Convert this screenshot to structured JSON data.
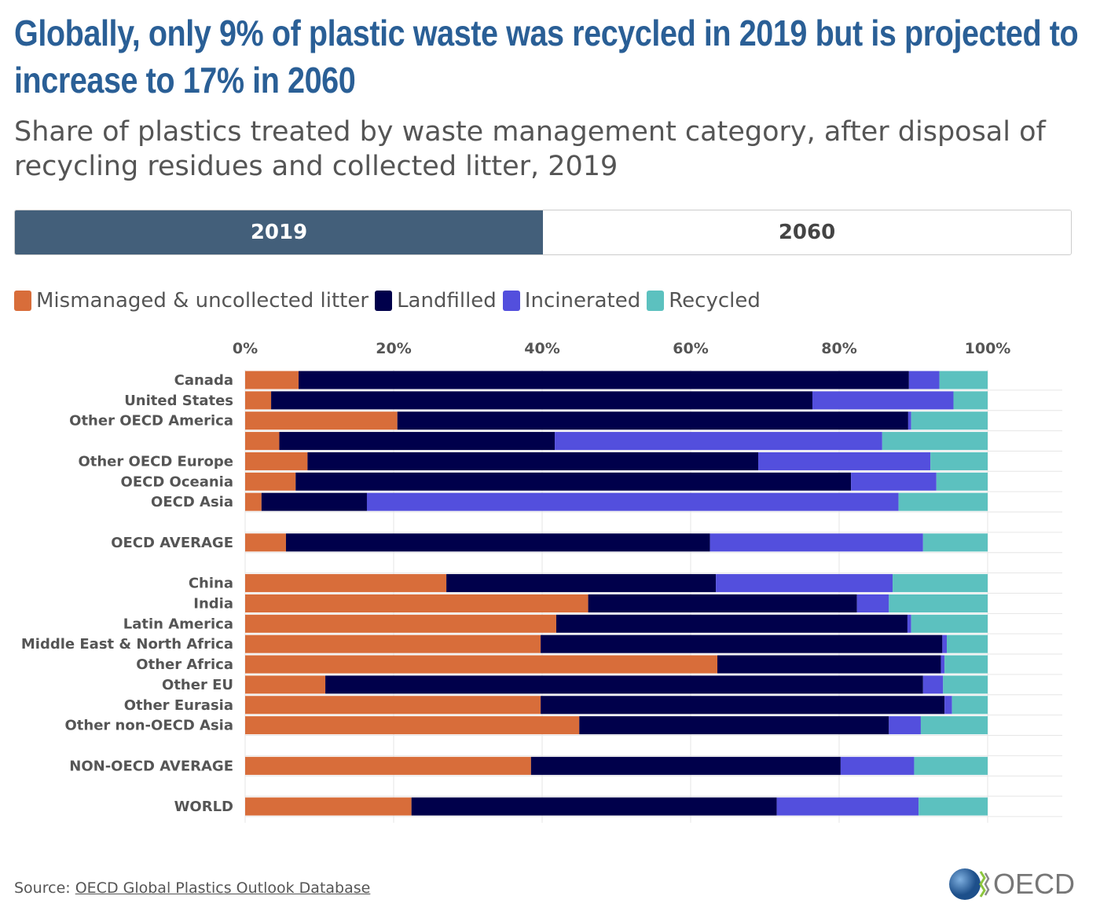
{
  "title": "Globally, only 9% of plastic waste was recycled in 2019 but is projected to increase to 17% in 2060",
  "subtitle": "Share of plastics treated by waste management category, after disposal of recycling residues and collected litter, 2019",
  "tabs": [
    {
      "label": "2019",
      "active": true
    },
    {
      "label": "2060",
      "active": false
    }
  ],
  "source": {
    "label": "Source:",
    "link": "OECD Global Plastics Outlook Database"
  },
  "logo": {
    "text": "OECD"
  },
  "chart_data": {
    "type": "bar",
    "orientation": "horizontal",
    "stacked": true,
    "xlim": [
      0,
      100
    ],
    "x_ticks": [
      "0%",
      "20%",
      "40%",
      "60%",
      "80%",
      "100%"
    ],
    "colors": [
      "#d86d3a",
      "#00004b",
      "#534fdd",
      "#5cc1bf"
    ],
    "series_names": [
      "Mismanaged & uncollected litter",
      "Landfilled",
      "Incinerated",
      "Recycled"
    ],
    "rows": [
      {
        "label": "Canada",
        "values": [
          7.2,
          82.2,
          4.1,
          6.5
        ]
      },
      {
        "label": "United States",
        "values": [
          3.5,
          72.9,
          19.0,
          4.6
        ]
      },
      {
        "label": "Other OECD America",
        "values": [
          20.5,
          68.8,
          0.4,
          10.3
        ]
      },
      {
        "label": "",
        "values": [
          4.6,
          37.1,
          44.1,
          14.2
        ]
      },
      {
        "label": "Other OECD Europe",
        "values": [
          8.4,
          60.7,
          23.2,
          7.7
        ]
      },
      {
        "label": "OECD Oceania",
        "values": [
          6.8,
          74.8,
          11.5,
          6.9
        ]
      },
      {
        "label": "OECD Asia",
        "values": [
          2.2,
          14.2,
          71.6,
          12.0
        ]
      },
      null,
      {
        "label": "OECD AVERAGE",
        "values": [
          5.5,
          57.1,
          28.7,
          8.7
        ]
      },
      null,
      {
        "label": "China",
        "values": [
          27.1,
          36.3,
          23.8,
          12.8
        ]
      },
      {
        "label": "India",
        "values": [
          46.2,
          36.2,
          4.3,
          13.3
        ]
      },
      {
        "label": "Latin America",
        "values": [
          41.9,
          47.3,
          0.5,
          10.3
        ]
      },
      {
        "label": "Middle East & North Africa",
        "values": [
          39.8,
          54.1,
          0.6,
          5.5
        ]
      },
      {
        "label": "Other Africa",
        "values": [
          63.6,
          30.1,
          0.5,
          5.8
        ]
      },
      {
        "label": "Other EU",
        "values": [
          10.8,
          80.5,
          2.7,
          6.0
        ]
      },
      {
        "label": "Other Eurasia",
        "values": [
          39.8,
          54.4,
          1.0,
          4.8
        ]
      },
      {
        "label": "Other non-OECD Asia",
        "values": [
          45.0,
          41.7,
          4.3,
          9.0
        ]
      },
      null,
      {
        "label": "NON-OECD AVERAGE",
        "values": [
          38.5,
          41.7,
          9.9,
          9.9
        ]
      },
      null,
      {
        "label": "WORLD",
        "values": [
          22.4,
          49.2,
          19.1,
          9.3
        ]
      }
    ]
  }
}
